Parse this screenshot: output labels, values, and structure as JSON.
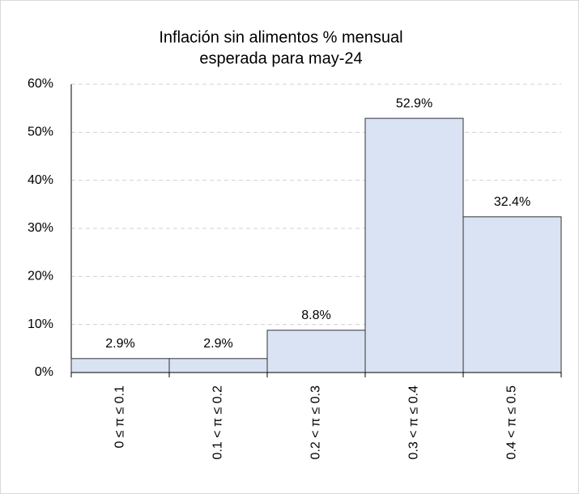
{
  "chart_data": {
    "type": "bar",
    "title": [
      "Inflación sin alimentos % mensual",
      "esperada para may-24"
    ],
    "categories": [
      "0 ≤  π  ≤ 0.1",
      "0.1 <  π  ≤ 0.2",
      "0.2 <  π  ≤ 0.3",
      "0.3 <  π  ≤ 0.4",
      "0.4 <  π  ≤ 0.5"
    ],
    "values": [
      2.9,
      2.9,
      8.8,
      52.9,
      32.4
    ],
    "value_labels": [
      "2.9%",
      "2.9%",
      "8.8%",
      "52.9%",
      "32.4%"
    ],
    "color": "#dae3f3",
    "ylim": [
      0,
      60
    ],
    "yticks": [
      {
        "value": 0,
        "label": "0%"
      },
      {
        "value": 10,
        "label": "10%"
      },
      {
        "value": 20,
        "label": "20%"
      },
      {
        "value": 30,
        "label": "30%"
      },
      {
        "value": 40,
        "label": "40%"
      },
      {
        "value": 50,
        "label": "50%"
      },
      {
        "value": 60,
        "label": "60%"
      }
    ],
    "grid": true
  }
}
